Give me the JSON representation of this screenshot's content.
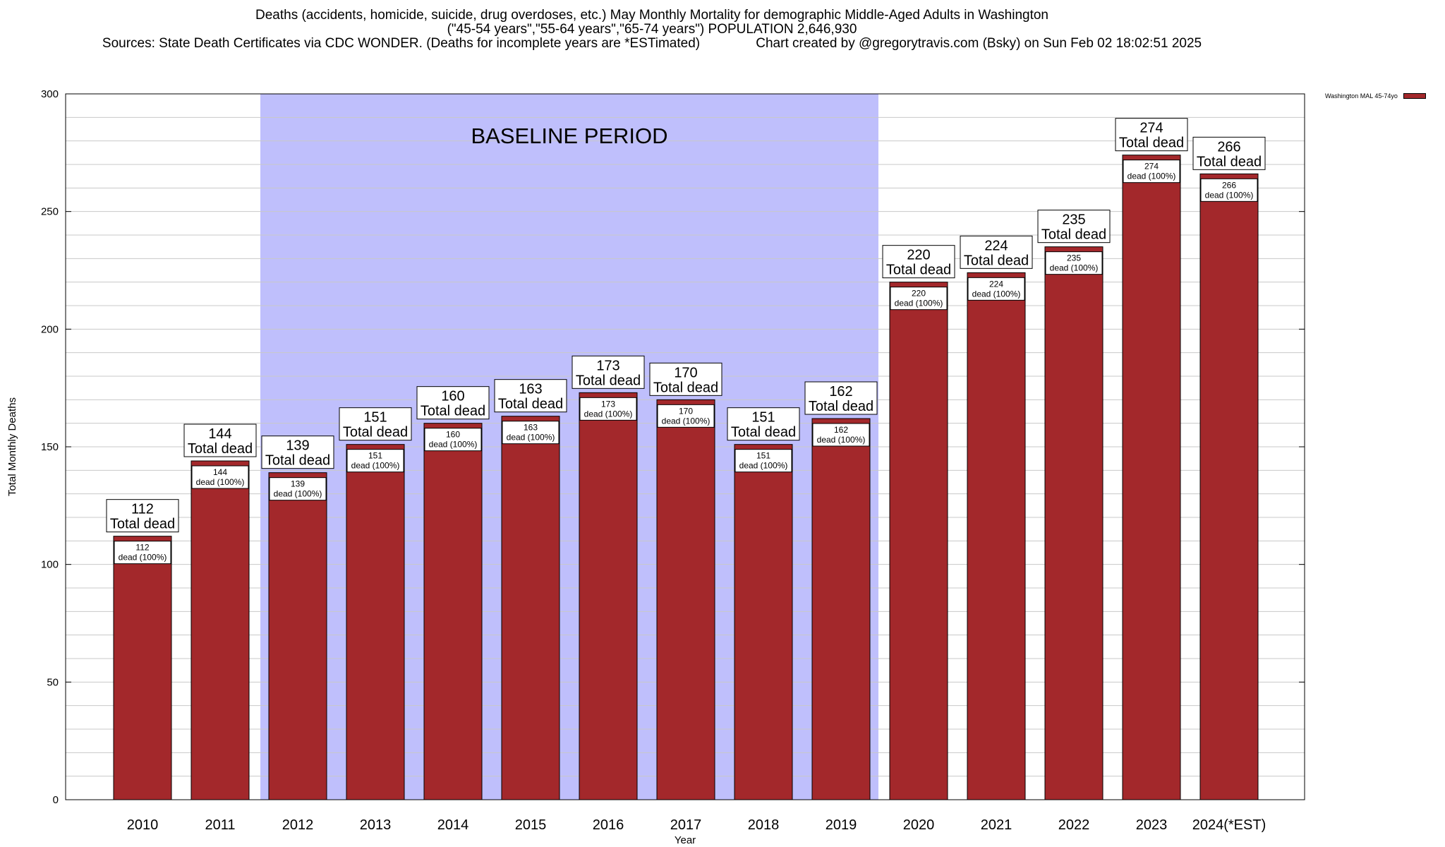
{
  "header": {
    "line1": "Deaths (accidents, homicide, suicide, drug overdoses, etc.) May Monthly Mortality for demographic Middle-Aged Adults in Washington",
    "line2": "(\"45-54 years\",\"55-64 years\",\"65-74 years\") POPULATION 2,646,930",
    "line3": "Sources: State Death Certificates via CDC WONDER. (Deaths for incomplete years are *ESTimated)               Chart created by @gregorytravis.com (Bsky) on Sun Feb 02 18:02:51 2025"
  },
  "legend": {
    "label": "Washington MAL 45-74yo"
  },
  "colors": {
    "bar": "#a3282b",
    "baseline_shade": "#bfbffc",
    "grid": "#c8c8c8"
  },
  "chart_data": {
    "type": "bar",
    "xlabel": "Year",
    "ylabel": "Total Monthly Deaths",
    "ylim": [
      0,
      300
    ],
    "yticks": [
      0,
      50,
      100,
      150,
      200,
      250,
      300
    ],
    "grid": true,
    "legend_position": "top-right",
    "categories": [
      "2010",
      "2011",
      "2012",
      "2013",
      "2014",
      "2015",
      "2016",
      "2017",
      "2018",
      "2019",
      "2020",
      "2021",
      "2022",
      "2023",
      "2024(*EST)"
    ],
    "series": [
      {
        "name": "Washington MAL 45-74yo",
        "values": [
          112,
          144,
          139,
          151,
          160,
          163,
          173,
          170,
          151,
          162,
          220,
          224,
          235,
          274,
          266
        ]
      }
    ],
    "total_label": "Total dead",
    "inner_label": "dead (100%)",
    "annotation": {
      "text": "BASELINE PERIOD",
      "from": "2012",
      "to": "2019"
    }
  }
}
